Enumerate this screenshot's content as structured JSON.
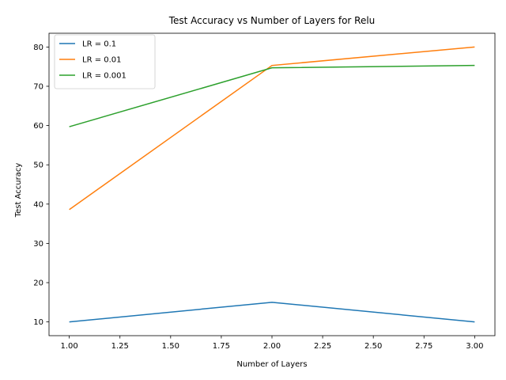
{
  "chart_data": {
    "type": "line",
    "title": "Test Accuracy vs Number of Layers for Relu",
    "xlabel": "Number of Layers",
    "ylabel": "Test Accuracy",
    "x": [
      1,
      2,
      3
    ],
    "xlim": [
      0.9,
      3.1
    ],
    "ylim": [
      6.5,
      83.5
    ],
    "xticks": [
      "1.00",
      "1.25",
      "1.50",
      "1.75",
      "2.00",
      "2.25",
      "2.50",
      "2.75",
      "3.00"
    ],
    "xtick_values": [
      1.0,
      1.25,
      1.5,
      1.75,
      2.0,
      2.25,
      2.5,
      2.75,
      3.0
    ],
    "yticks": [
      "10",
      "20",
      "30",
      "40",
      "50",
      "60",
      "70",
      "80"
    ],
    "ytick_values": [
      10,
      20,
      30,
      40,
      50,
      60,
      70,
      80
    ],
    "grid": false,
    "legend_position": "top-left",
    "series": [
      {
        "name": "LR = 0.1",
        "values": [
          10.0,
          15.0,
          10.0
        ],
        "color": "#1f77b4"
      },
      {
        "name": "LR = 0.01",
        "values": [
          38.6,
          75.3,
          80.0
        ],
        "color": "#ff7f0e"
      },
      {
        "name": "LR = 0.001",
        "values": [
          59.7,
          74.7,
          75.3
        ],
        "color": "#2ca02c"
      }
    ]
  }
}
